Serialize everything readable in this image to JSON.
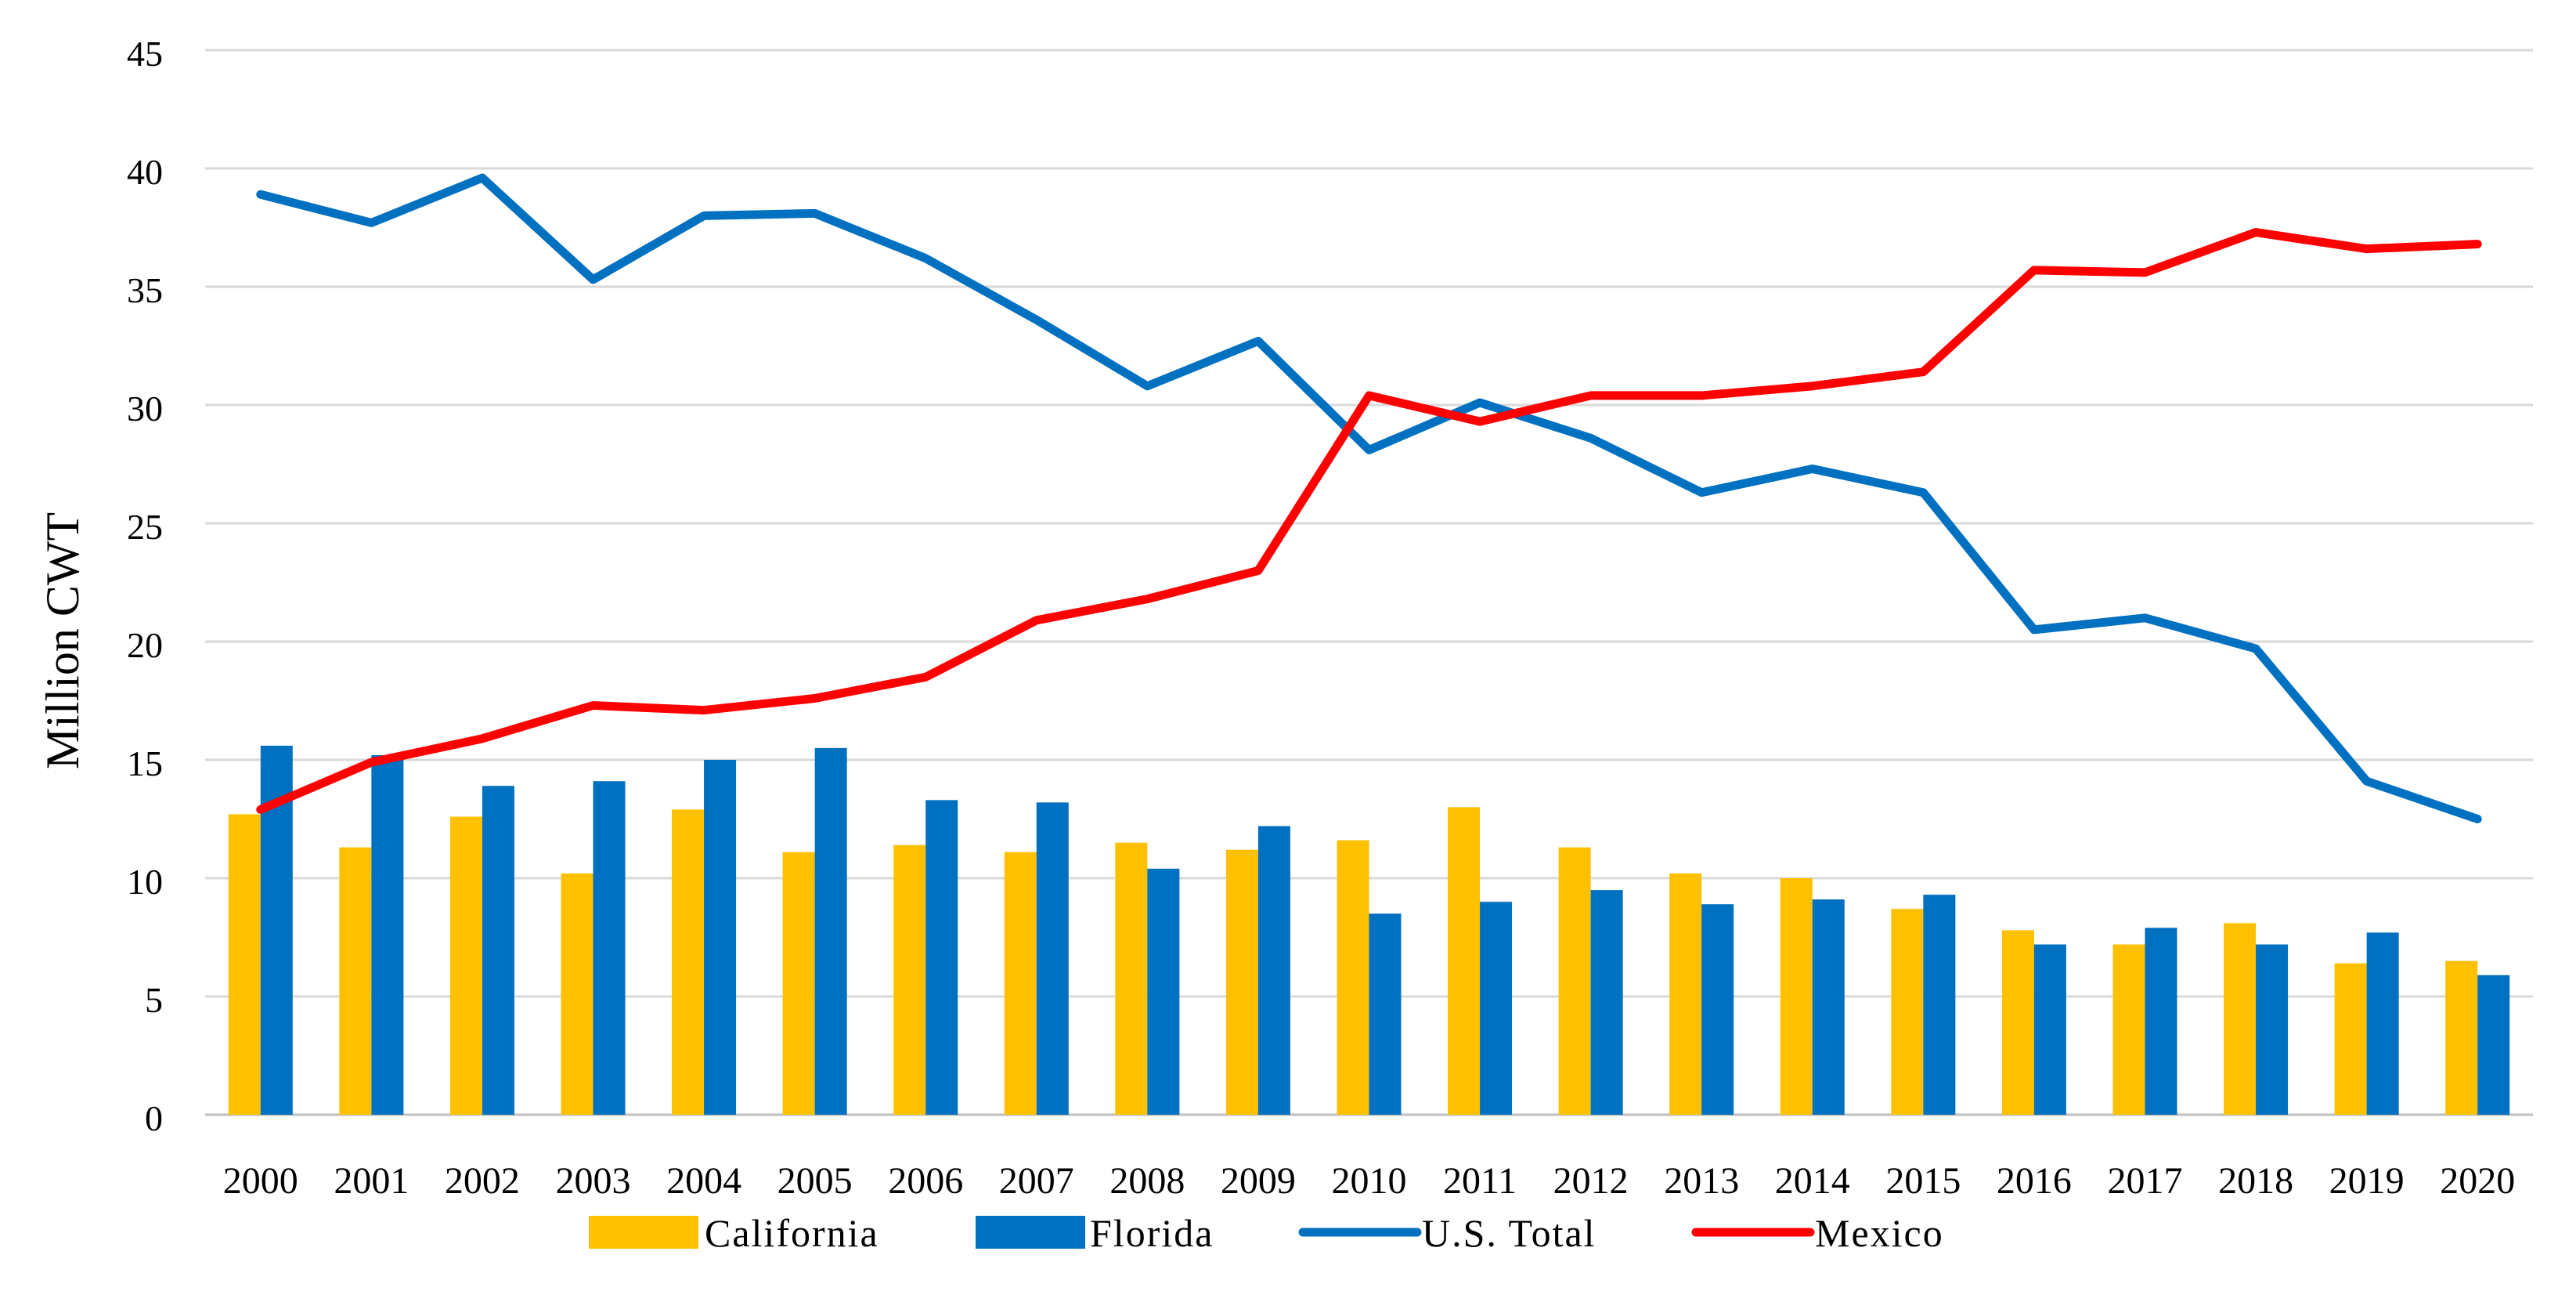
{
  "chart_data": {
    "type": "bar",
    "title": "",
    "xlabel": "",
    "ylabel": "Million CWT",
    "ylim": [
      0,
      45
    ],
    "yticks": [
      0,
      5,
      10,
      15,
      20,
      25,
      30,
      35,
      40,
      45
    ],
    "grid": true,
    "legend_position": "bottom",
    "categories": [
      "2000",
      "2001",
      "2002",
      "2003",
      "2004",
      "2005",
      "2006",
      "2007",
      "2008",
      "2009",
      "2010",
      "2011",
      "2012",
      "2013",
      "2014",
      "2015",
      "2016",
      "2017",
      "2018",
      "2019",
      "2020"
    ],
    "series": [
      {
        "name": "California",
        "kind": "bar",
        "color": "#FFC000",
        "values": [
          12.7,
          11.3,
          12.6,
          10.2,
          12.9,
          11.1,
          11.4,
          11.1,
          11.5,
          11.2,
          11.6,
          13.0,
          11.3,
          10.2,
          10.0,
          8.7,
          7.8,
          7.2,
          8.1,
          6.4,
          6.5
        ]
      },
      {
        "name": "Florida",
        "kind": "bar",
        "color": "#0070C0",
        "values": [
          15.6,
          15.2,
          13.9,
          14.1,
          15.0,
          15.5,
          13.3,
          13.2,
          10.4,
          12.2,
          8.5,
          9.0,
          9.5,
          8.9,
          9.1,
          9.3,
          7.2,
          7.9,
          7.2,
          7.7,
          5.9
        ]
      },
      {
        "name": "U.S. Total",
        "kind": "line",
        "color": "#0070C0",
        "values": [
          38.9,
          37.7,
          39.6,
          35.3,
          38.0,
          38.1,
          36.2,
          33.6,
          30.8,
          32.7,
          28.1,
          30.1,
          28.6,
          26.3,
          27.3,
          26.3,
          20.5,
          21.0,
          19.7,
          14.1,
          12.5
        ]
      },
      {
        "name": "Mexico",
        "kind": "line",
        "color": "#FF0000",
        "values": [
          12.9,
          14.9,
          15.9,
          17.3,
          17.1,
          17.6,
          18.5,
          20.9,
          21.8,
          23.0,
          30.4,
          29.3,
          30.4,
          30.4,
          30.8,
          31.4,
          35.7,
          35.6,
          37.3,
          36.6,
          36.8
        ]
      }
    ]
  }
}
